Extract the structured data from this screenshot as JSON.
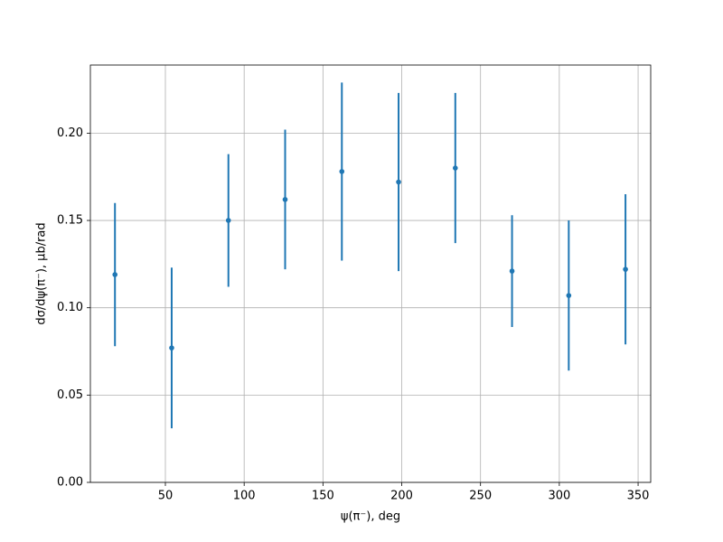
{
  "chart_data": {
    "type": "errorbar",
    "xlabel": "ψ(π⁻), deg",
    "ylabel": "dσ/dψ(π⁻), μb/rad",
    "x": [
      18,
      54,
      90,
      126,
      162,
      198,
      234,
      270,
      306,
      342
    ],
    "series": [
      {
        "color": "#1f77b4",
        "values": [
          0.119,
          0.077,
          0.15,
          0.162,
          0.178,
          0.172,
          0.18,
          0.121,
          0.107,
          0.122
        ],
        "errors": [
          0.041,
          0.046,
          0.038,
          0.04,
          0.051,
          0.051,
          0.043,
          0.032,
          0.043,
          0.043
        ]
      }
    ],
    "xlim": [
      2.4,
      358
    ],
    "ylim": [
      0,
      0.239
    ],
    "xticks": [
      50,
      100,
      150,
      200,
      250,
      300,
      350
    ],
    "yticks": [
      {
        "value": 0,
        "label": "0.00"
      },
      {
        "value": 0.05,
        "label": "0.05"
      },
      {
        "value": 0.1,
        "label": "0.10"
      },
      {
        "value": 0.15,
        "label": "0.15"
      },
      {
        "value": 0.2,
        "label": "0.20"
      }
    ],
    "grid": true
  }
}
